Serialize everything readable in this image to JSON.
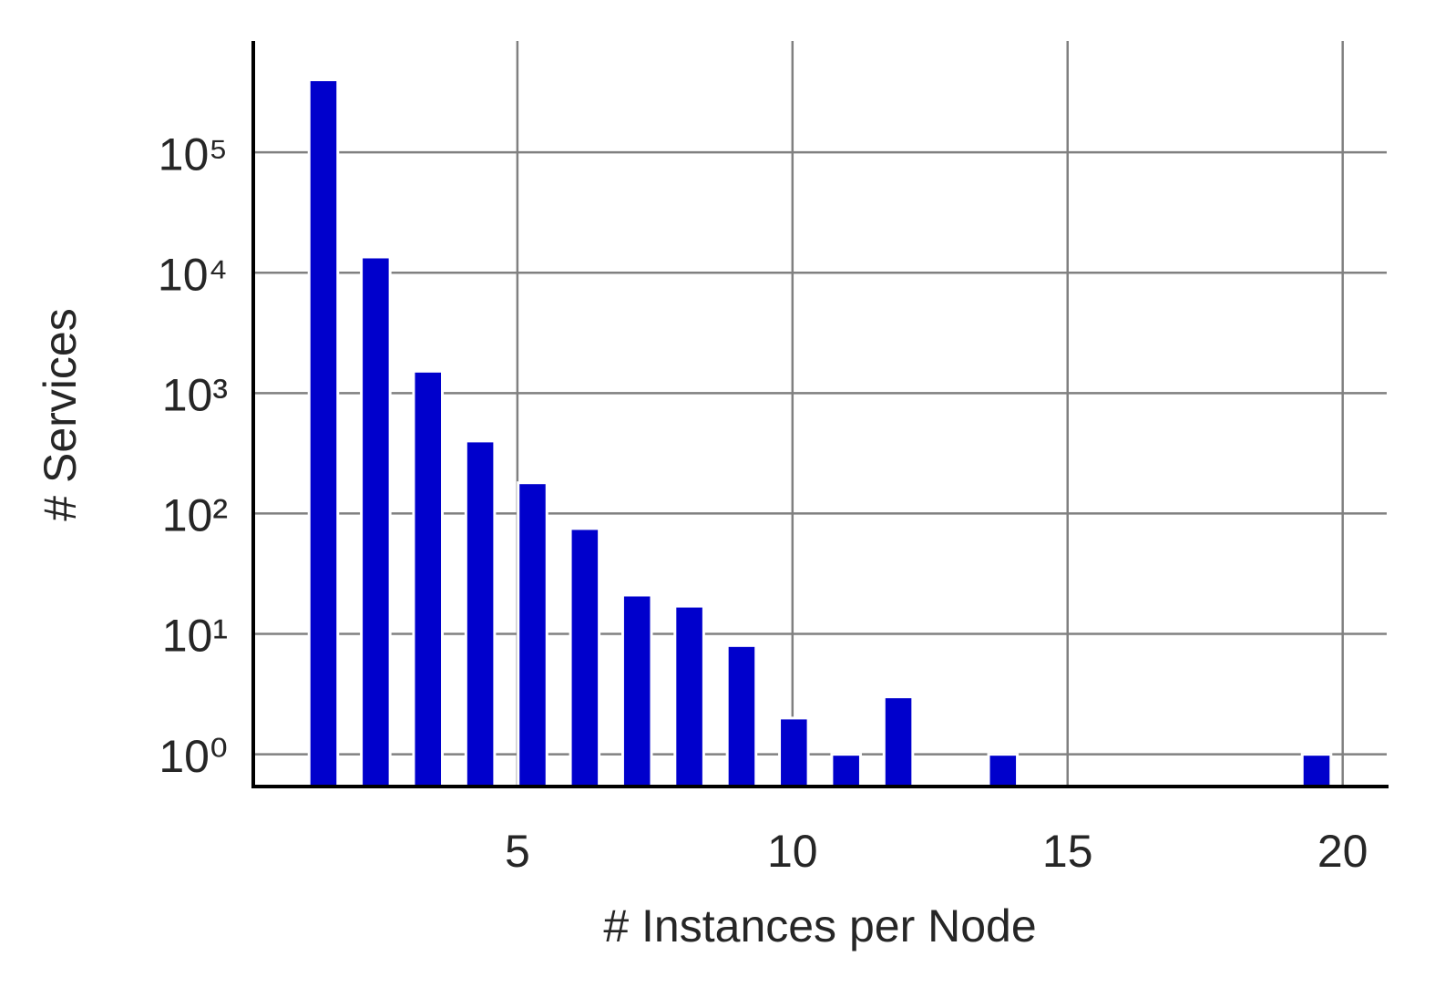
{
  "chart_data": {
    "type": "histogram",
    "x_label": "# Instances per Node",
    "y_label": "# Services",
    "bins": [
      1,
      1.95,
      2.9,
      3.85,
      4.8,
      5.75,
      6.7,
      7.65,
      8.6,
      9.55,
      10.5,
      11.45,
      12.4,
      13.35,
      14.3,
      15.25,
      16.2,
      17.15,
      18.1,
      19.05,
      20
    ],
    "values": [
      400000,
      13500,
      1520,
      400,
      180,
      75,
      21,
      17,
      8,
      2,
      1,
      3,
      0,
      1,
      0,
      0,
      0,
      0,
      0,
      1
    ],
    "color": "#0000cc",
    "rwidth": 0.55,
    "xlim": [
      0.2,
      20.8
    ],
    "xticks": [
      5,
      10,
      15,
      20
    ],
    "ylim": [
      0.54,
      840000
    ],
    "yscale": "log",
    "yticks": [
      {
        "value": 1,
        "label": "10⁰"
      },
      {
        "value": 10,
        "label": "10¹"
      },
      {
        "value": 100,
        "label": "10²"
      },
      {
        "value": 1000,
        "label": "10³"
      },
      {
        "value": 10000,
        "label": "10⁴"
      },
      {
        "value": 100000,
        "label": "10⁵"
      }
    ],
    "grid": true
  }
}
